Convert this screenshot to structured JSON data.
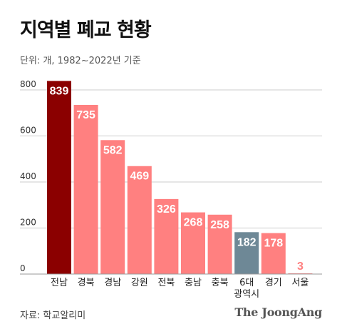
{
  "header": {
    "title": "지역별 폐교 현황",
    "subtitle": "단위: 개, 1982~2022년 기준"
  },
  "footer": {
    "source": "자료: 학교알리미",
    "brand": "The JoongAng"
  },
  "colors": {
    "highlight": "#8b0000",
    "bar": "#ff8080",
    "metro": "#6e8896",
    "low_label": "#ff8080",
    "grid": "#cccccc"
  },
  "chart_data": {
    "type": "bar",
    "title": "지역별 폐교 현황",
    "subtitle": "단위: 개, 1982~2022년 기준",
    "categories": [
      "전남",
      "경북",
      "경남",
      "강원",
      "전북",
      "충남",
      "충북",
      "6대\n광역시",
      "경기",
      "서울"
    ],
    "values": [
      839,
      735,
      582,
      469,
      326,
      268,
      258,
      182,
      178,
      3
    ],
    "ylim": [
      0,
      840
    ],
    "yticks": [
      0,
      200,
      400,
      600,
      800
    ],
    "grid": true,
    "data_labels": true,
    "bar_colors": [
      "highlight",
      "bar",
      "bar",
      "bar",
      "bar",
      "bar",
      "bar",
      "metro",
      "bar",
      "bar"
    ]
  }
}
